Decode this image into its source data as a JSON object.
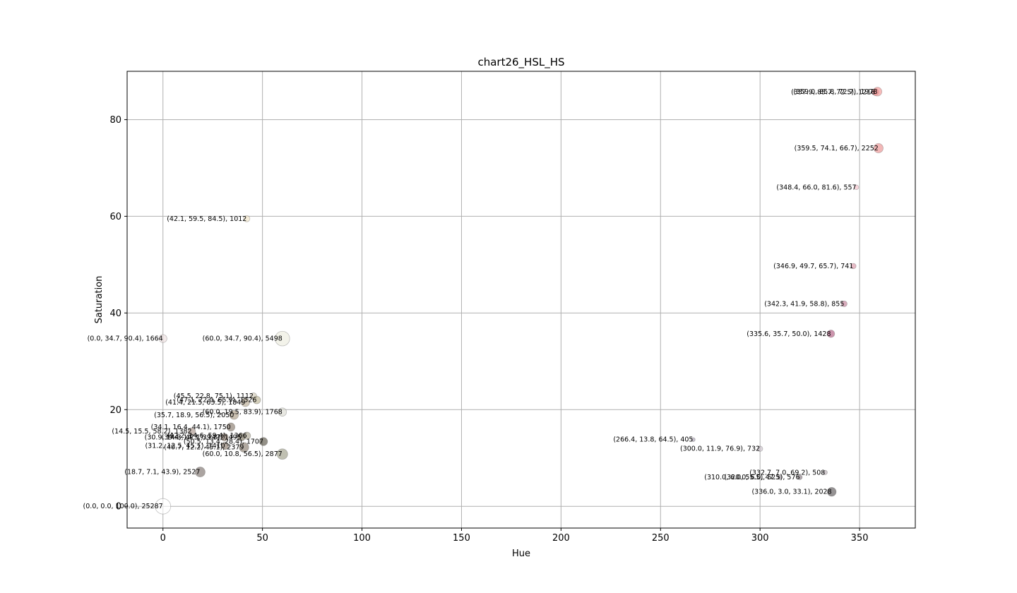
{
  "chart_data": {
    "type": "scatter",
    "title": "chart26_HSL_HS",
    "xlabel": "Hue",
    "ylabel": "Saturation",
    "xlim": [
      -18,
      378
    ],
    "ylim": [
      -4.5,
      90
    ],
    "xticks": [
      0,
      50,
      100,
      150,
      200,
      250,
      300,
      350
    ],
    "yticks": [
      0,
      20,
      40,
      60,
      80
    ],
    "grid": true,
    "points": [
      {
        "hue": 0.0,
        "sat": 0.0,
        "light": 100.0,
        "count": 25287,
        "label": "(0.0, 0.0, 100.0), 25287",
        "color": "#ffffff"
      },
      {
        "hue": 357.9,
        "sat": 85.7,
        "light": 72.5,
        "count": 1218,
        "label": "(357.9, 85.7, 72.5), 1218",
        "color": "#f29098"
      },
      {
        "hue": 359.0,
        "sat": 85.8,
        "light": 72.7,
        "count": 1978,
        "label": "(359.0, 85.8, 72.7), 1978",
        "color": "#f2918f"
      },
      {
        "hue": 359.5,
        "sat": 74.1,
        "light": 66.7,
        "count": 2252,
        "label": "(359.5, 74.1, 66.7), 2252",
        "color": "#ea8a8a"
      },
      {
        "hue": 348.4,
        "sat": 66.0,
        "light": 81.6,
        "count": 557,
        "label": "(348.4, 66.0, 81.6), 557",
        "color": "#f3bec8"
      },
      {
        "hue": 42.1,
        "sat": 59.5,
        "light": 84.5,
        "count": 1012,
        "label": "(42.1, 59.5, 84.5), 1012",
        "color": "#efe2c3"
      },
      {
        "hue": 346.9,
        "sat": 49.7,
        "light": 65.7,
        "count": 741,
        "label": "(346.9, 49.7, 65.7), 741",
        "color": "#d68fa2"
      },
      {
        "hue": 342.3,
        "sat": 41.9,
        "light": 58.8,
        "count": 855,
        "label": "(342.3, 41.9, 58.8), 855",
        "color": "#c27b94"
      },
      {
        "hue": 335.6,
        "sat": 35.7,
        "light": 50.0,
        "count": 1428,
        "label": "(335.6, 35.7, 50.0), 1428",
        "color": "#ad527a"
      },
      {
        "hue": 0.0,
        "sat": 34.7,
        "light": 90.4,
        "count": 1664,
        "label": "(0.0, 34.7, 90.4), 1664",
        "color": "#ecdddd"
      },
      {
        "hue": 60.0,
        "sat": 34.7,
        "light": 90.4,
        "count": 5498,
        "label": "(60.0, 34.7, 90.4), 5498",
        "color": "#ecebdd"
      },
      {
        "hue": 45.5,
        "sat": 22.8,
        "light": 75.1,
        "count": 1112,
        "label": "(45.5, 22.8, 75.1), 1112",
        "color": "#cfc7b1"
      },
      {
        "hue": 41.4,
        "sat": 21.5,
        "light": 63.5,
        "count": 1849,
        "label": "(41.4, 21.5, 63.5), 1849",
        "color": "#b5a78e"
      },
      {
        "hue": 47.1,
        "sat": 22.0,
        "light": 65.9,
        "count": 1526,
        "label": "(47.1, 22.0, 65.9), 1526",
        "color": "#bab292"
      },
      {
        "hue": 60.0,
        "sat": 19.5,
        "light": 83.9,
        "count": 1768,
        "label": "(60.0, 19.5, 83.9), 1768",
        "color": "#dadad0"
      },
      {
        "hue": 35.7,
        "sat": 18.9,
        "light": 56.5,
        "count": 2050,
        "label": "(35.7, 18.9, 56.5), 2050",
        "color": "#a89880"
      },
      {
        "hue": 34.1,
        "sat": 16.4,
        "light": 44.1,
        "count": 1750,
        "label": "(34.1, 16.4, 44.1), 1750",
        "color": "#837566"
      },
      {
        "hue": 14.5,
        "sat": 15.5,
        "light": 58.2,
        "count": 1382,
        "label": "(14.5, 15.5, 58.2), 1382",
        "color": "#a59188"
      },
      {
        "hue": 42.2,
        "sat": 14.6,
        "light": 59.4,
        "count": 1366,
        "label": "(42.2, 14.6, 59.4), 1366",
        "color": "#a69f8a"
      },
      {
        "hue": 39.4,
        "sat": 14.3,
        "light": 39.3,
        "count": 1495,
        "label": "(39.4, 14.3, 39.3), 1495",
        "color": "#736a56"
      },
      {
        "hue": 30.9,
        "sat": 14.3,
        "light": 47.1,
        "count": 1472,
        "label": "(30.9, 14.3, 47.1), 1472",
        "color": "#8a7867"
      },
      {
        "hue": 50.5,
        "sat": 13.4,
        "light": 28.4,
        "count": 1707,
        "label": "(50.5, 13.4, 28.4), 1707",
        "color": "#524d3f"
      },
      {
        "hue": 31.2,
        "sat": 12.5,
        "light": 45.1,
        "count": 1410,
        "label": "(31.2, 12.5, 45.1), 1410",
        "color": "#827264"
      },
      {
        "hue": 40.7,
        "sat": 12.2,
        "light": 45.1,
        "count": 2379,
        "label": "(40.7, 12.2, 45.1), 2379",
        "color": "#817565"
      },
      {
        "hue": 60.0,
        "sat": 10.8,
        "light": 56.5,
        "count": 2877,
        "label": "(60.0, 10.8, 56.5), 2877",
        "color": "#9a9a82"
      },
      {
        "hue": 18.7,
        "sat": 7.1,
        "light": 43.9,
        "count": 2527,
        "label": "(18.7, 7.1, 43.9), 2527",
        "color": "#786c67"
      },
      {
        "hue": 266.4,
        "sat": 13.8,
        "light": 64.5,
        "count": 405,
        "label": "(266.4, 13.8, 64.5), 405",
        "color": "#a49bad"
      },
      {
        "hue": 300.0,
        "sat": 11.9,
        "light": 76.9,
        "count": 732,
        "label": "(300.0, 11.9, 76.9), 732",
        "color": "#c8bec8"
      },
      {
        "hue": 332.7,
        "sat": 7.0,
        "light": 69.2,
        "count": 508,
        "label": "(332.7, 7.0, 69.2), 508",
        "color": "#b5aab0"
      },
      {
        "hue": 310.0,
        "sat": 6.0,
        "light": 55.5,
        "count": 525,
        "label": "(310.0, 6.0, 55.5), 525",
        "color": "#938b91"
      },
      {
        "hue": 320.0,
        "sat": 6.0,
        "light": 47.5,
        "count": 576,
        "label": "(320.0, 6.0, 47.5), 576",
        "color": "#80727a"
      },
      {
        "hue": 336.0,
        "sat": 3.0,
        "light": 33.1,
        "count": 2028,
        "label": "(336.0, 3.0, 33.1), 2028",
        "color": "#565053"
      }
    ]
  }
}
